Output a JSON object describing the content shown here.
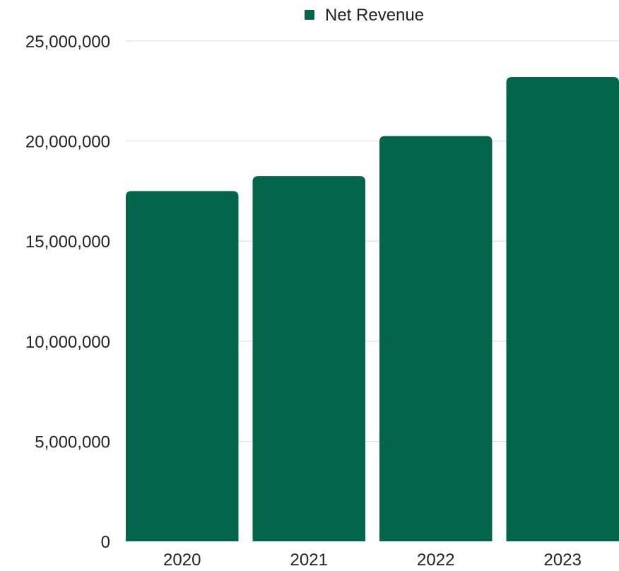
{
  "chart_data": {
    "type": "bar",
    "categories": [
      "2020",
      "2021",
      "2022",
      "2023"
    ],
    "series": [
      {
        "name": "Net Revenue",
        "values": [
          17500000,
          18250000,
          20250000,
          23200000
        ],
        "color": "#03664a"
      }
    ],
    "ylim": [
      0,
      25000000
    ],
    "y_ticks": [
      0,
      5000000,
      10000000,
      15000000,
      20000000,
      25000000
    ],
    "y_tick_labels": [
      "0",
      "5,000,000",
      "10,000,000",
      "15,000,000",
      "20,000,000",
      "25,000,000"
    ],
    "grid": true,
    "grid_color": "#d9d9d9",
    "legend_position": "top"
  }
}
